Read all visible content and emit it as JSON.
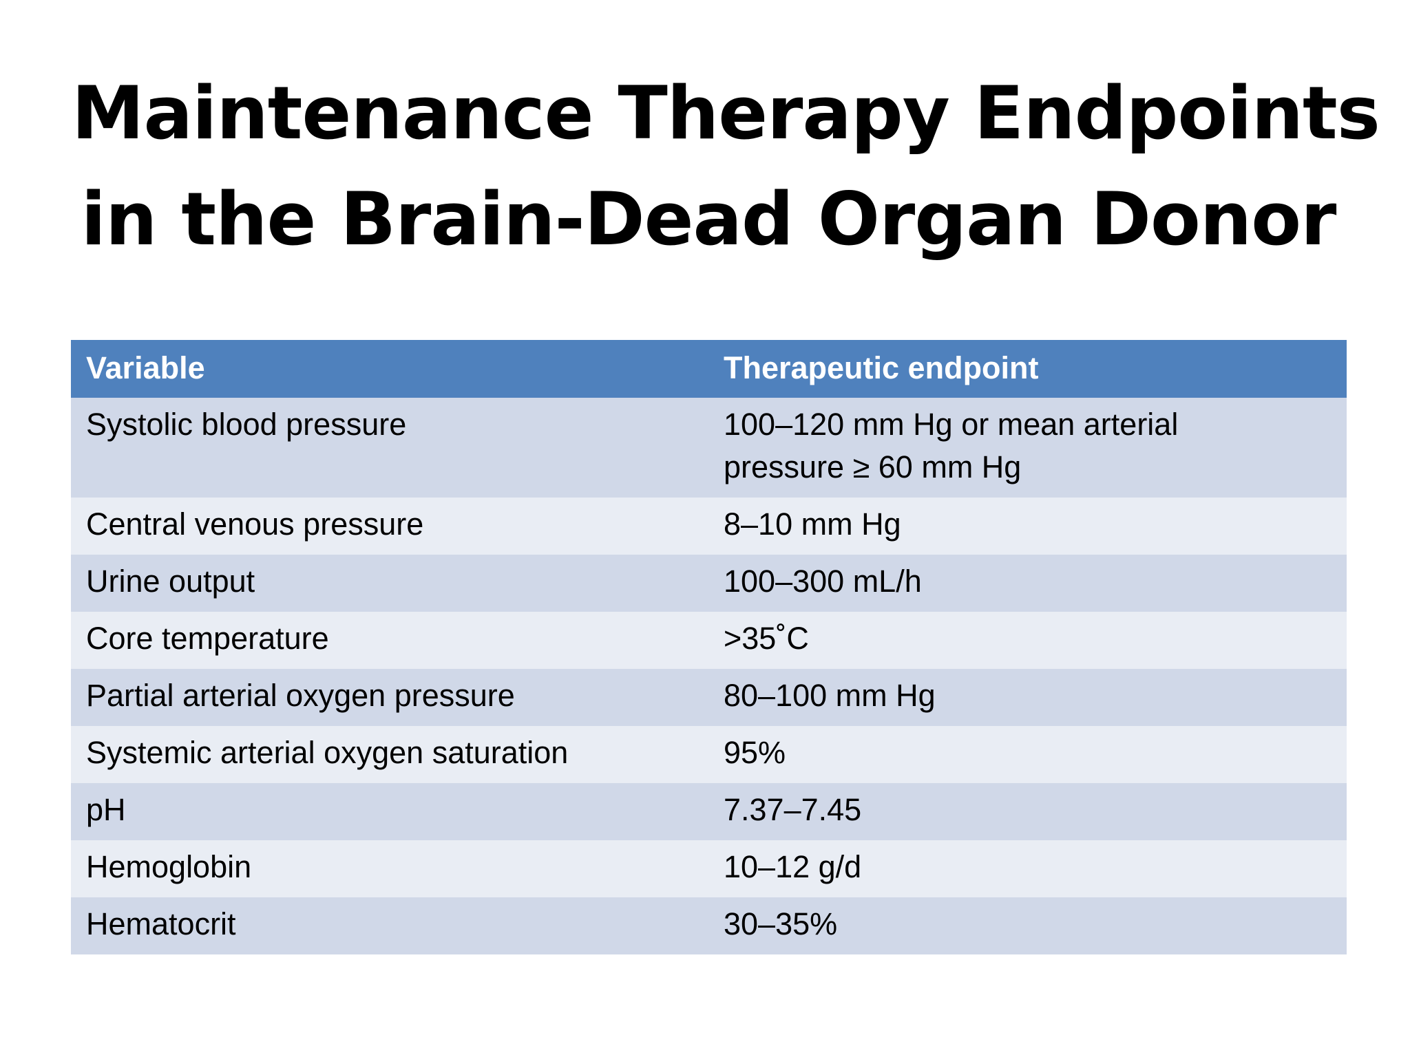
{
  "slide": {
    "title_line1": "Maintenance Therapy Endpoints",
    "title_line2": "in the Brain-Dead Organ Donor"
  },
  "table": {
    "headers": [
      "Variable",
      "Therapeutic endpoint"
    ],
    "rows": [
      {
        "variable": "Systolic blood pressure",
        "endpoint_line1": "100–120 mm Hg or mean arterial",
        "endpoint_line2": "pressure ≥ 60 mm Hg"
      },
      {
        "variable": "Central venous pressure",
        "endpoint": "8–10 mm Hg"
      },
      {
        "variable": "Urine output",
        "endpoint": "100–300 mL/h"
      },
      {
        "variable": "Core temperature",
        "endpoint": ">35˚C"
      },
      {
        "variable": "Partial arterial oxygen pressure",
        "endpoint": "80–100 mm Hg"
      },
      {
        "variable": "Systemic arterial oxygen saturation",
        "endpoint": "95%"
      },
      {
        "variable": "pH",
        "endpoint": "7.37–7.45"
      },
      {
        "variable": "Hemoglobin",
        "endpoint": "10–12 g/d"
      },
      {
        "variable": "Hematocrit",
        "endpoint": "30–35%"
      }
    ]
  },
  "colors": {
    "header_bg": "#4f81bd",
    "row_odd_bg": "#d0d8e8",
    "row_even_bg": "#e9edf4"
  }
}
